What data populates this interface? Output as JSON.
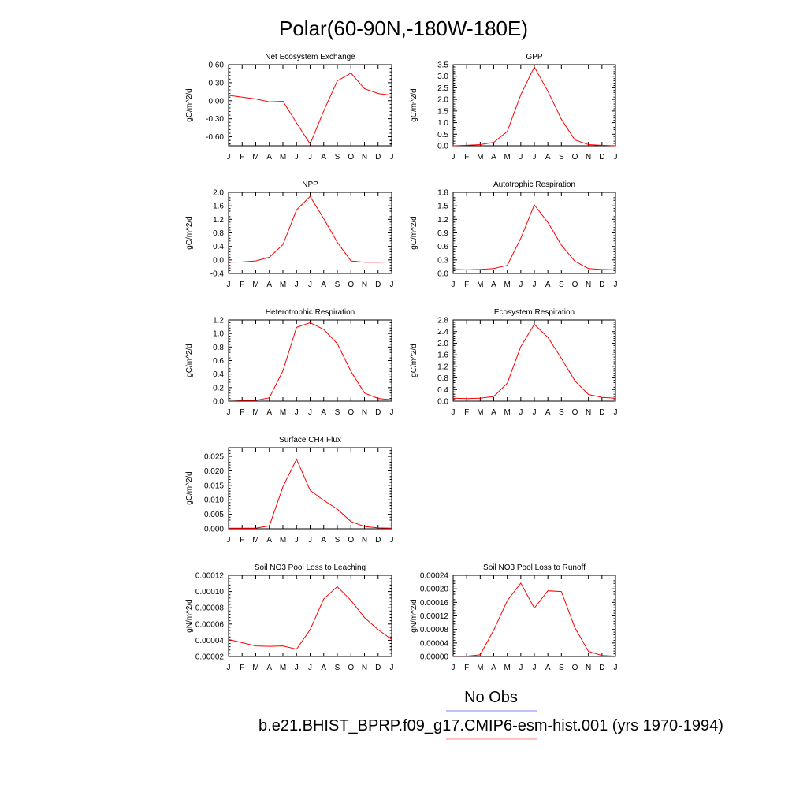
{
  "page": {
    "title": "Polar(60-90N,-180W-180E)",
    "legend": [
      {
        "label": "No Obs",
        "color": "#8080ff"
      },
      {
        "label": "b.e21.BHIST_BPRP.f09_g17.CMIP6-esm-hist.001 (yrs 1970-1994)",
        "color": "#ff8080"
      }
    ]
  },
  "chart_data": [
    {
      "type": "line",
      "title": "Net Ecosystem Exchange",
      "ylabel": "gC/m^2/d",
      "ylim": [
        -0.75,
        0.6
      ],
      "yticks": [
        -0.6,
        -0.3,
        0.0,
        0.3,
        0.6
      ],
      "ytick_labels": [
        "-0.60",
        "-0.30",
        "0.00",
        "0.30",
        "0.60"
      ],
      "x": [
        "J",
        "F",
        "M",
        "A",
        "M",
        "J",
        "J",
        "A",
        "S",
        "O",
        "N",
        "D",
        "J"
      ],
      "series": [
        {
          "color": "#ff0000",
          "values": [
            0.09,
            0.06,
            0.03,
            -0.02,
            -0.01,
            -0.37,
            -0.72,
            -0.17,
            0.33,
            0.46,
            0.2,
            0.12,
            0.09
          ]
        }
      ]
    },
    {
      "type": "line",
      "title": "GPP",
      "ylabel": "gC/m^2/d",
      "ylim": [
        0,
        3.5
      ],
      "yticks": [
        0.0,
        0.5,
        1.0,
        1.5,
        2.0,
        2.5,
        3.0,
        3.5
      ],
      "ytick_labels": [
        "0.0",
        "0.5",
        "1.0",
        "1.5",
        "2.0",
        "2.5",
        "3.0",
        "3.5"
      ],
      "x": [
        "J",
        "F",
        "M",
        "A",
        "M",
        "J",
        "J",
        "A",
        "S",
        "O",
        "N",
        "D",
        "J"
      ],
      "series": [
        {
          "color": "#ff0000",
          "values": [
            0.0,
            0.02,
            0.05,
            0.15,
            0.62,
            2.2,
            3.4,
            2.35,
            1.15,
            0.25,
            0.05,
            0.02,
            0.0
          ]
        }
      ]
    },
    {
      "type": "line",
      "title": "NPP",
      "ylabel": "gC/m^2/d",
      "ylim": [
        -0.4,
        2.0
      ],
      "yticks": [
        -0.4,
        0.0,
        0.4,
        0.8,
        1.2,
        1.6,
        2.0
      ],
      "ytick_labels": [
        "-0.4",
        "0.0",
        "0.4",
        "0.8",
        "1.2",
        "1.6",
        "2.0"
      ],
      "x": [
        "J",
        "F",
        "M",
        "A",
        "M",
        "J",
        "J",
        "A",
        "S",
        "O",
        "N",
        "D",
        "J"
      ],
      "series": [
        {
          "color": "#ff0000",
          "values": [
            -0.07,
            -0.06,
            -0.03,
            0.08,
            0.45,
            1.48,
            1.88,
            1.22,
            0.52,
            -0.03,
            -0.07,
            -0.07,
            -0.06
          ]
        }
      ]
    },
    {
      "type": "line",
      "title": "Autotrophic Respiration",
      "ylabel": "gC/m^2/d",
      "ylim": [
        0,
        1.8
      ],
      "yticks": [
        0.0,
        0.3,
        0.6,
        0.9,
        1.2,
        1.5,
        1.8
      ],
      "ytick_labels": [
        "0.0",
        "0.3",
        "0.6",
        "0.9",
        "1.2",
        "1.5",
        "1.8"
      ],
      "x": [
        "J",
        "F",
        "M",
        "A",
        "M",
        "J",
        "J",
        "A",
        "S",
        "O",
        "N",
        "D",
        "J"
      ],
      "series": [
        {
          "color": "#ff0000",
          "values": [
            0.09,
            0.08,
            0.09,
            0.11,
            0.18,
            0.78,
            1.52,
            1.13,
            0.63,
            0.27,
            0.11,
            0.09,
            0.08
          ]
        }
      ]
    },
    {
      "type": "line",
      "title": "Heterotrophic Respiration",
      "ylabel": "gC/m^2/d",
      "ylim": [
        0,
        1.2
      ],
      "yticks": [
        0.0,
        0.2,
        0.4,
        0.6,
        0.8,
        1.0,
        1.2
      ],
      "ytick_labels": [
        "0.0",
        "0.2",
        "0.4",
        "0.6",
        "0.8",
        "1.0",
        "1.2"
      ],
      "x": [
        "J",
        "F",
        "M",
        "A",
        "M",
        "J",
        "J",
        "A",
        "S",
        "O",
        "N",
        "D",
        "J"
      ],
      "series": [
        {
          "color": "#ff0000",
          "values": [
            0.02,
            0.01,
            0.01,
            0.05,
            0.45,
            1.09,
            1.16,
            1.06,
            0.85,
            0.44,
            0.12,
            0.04,
            0.02
          ]
        }
      ]
    },
    {
      "type": "line",
      "title": "Ecosystem Respiration",
      "ylabel": "gC/m^2/d",
      "ylim": [
        0,
        2.8
      ],
      "yticks": [
        0.0,
        0.4,
        0.8,
        1.2,
        1.6,
        2.0,
        2.4,
        2.8
      ],
      "ytick_labels": [
        "0.0",
        "0.4",
        "0.8",
        "1.2",
        "1.6",
        "2.0",
        "2.4",
        "2.8"
      ],
      "x": [
        "J",
        "F",
        "M",
        "A",
        "M",
        "J",
        "J",
        "A",
        "S",
        "O",
        "N",
        "D",
        "J"
      ],
      "series": [
        {
          "color": "#ff0000",
          "values": [
            0.1,
            0.09,
            0.1,
            0.16,
            0.62,
            1.88,
            2.65,
            2.2,
            1.48,
            0.7,
            0.23,
            0.13,
            0.1
          ]
        }
      ]
    },
    {
      "type": "line",
      "title": "Surface CH4 Flux",
      "ylabel": "gC/m^2/d",
      "ylim": [
        0,
        0.028
      ],
      "yticks": [
        0.0,
        0.005,
        0.01,
        0.015,
        0.02,
        0.025
      ],
      "ytick_labels": [
        "0.000",
        "0.005",
        "0.010",
        "0.015",
        "0.020",
        "0.025"
      ],
      "x": [
        "J",
        "F",
        "M",
        "A",
        "M",
        "J",
        "J",
        "A",
        "S",
        "O",
        "N",
        "D",
        "J"
      ],
      "series": [
        {
          "color": "#ff0000",
          "values": [
            0.0002,
            0.0002,
            0.0002,
            0.001,
            0.0145,
            0.024,
            0.0133,
            0.0098,
            0.0068,
            0.0025,
            0.0008,
            0.0003,
            0.0002
          ]
        }
      ]
    },
    {
      "type": "line",
      "title": "Soil NO3 Pool Loss to Leaching",
      "ylabel": "gN/m^2/d",
      "ylim": [
        2e-05,
        0.00012
      ],
      "yticks": [
        2e-05,
        4e-05,
        6e-05,
        8e-05,
        0.0001,
        0.00012
      ],
      "ytick_labels": [
        "0.00002",
        "0.00004",
        "0.00006",
        "0.00008",
        "0.00010",
        "0.00012"
      ],
      "x": [
        "J",
        "F",
        "M",
        "A",
        "M",
        "J",
        "J",
        "A",
        "S",
        "O",
        "N",
        "D",
        "J"
      ],
      "series": [
        {
          "color": "#ff0000",
          "values": [
            4.1e-05,
            3.7e-05,
            3.3e-05,
            3.25e-05,
            3.3e-05,
            2.9e-05,
            5.3e-05,
            9.1e-05,
            0.000106,
            8.9e-05,
            6.8e-05,
            5.3e-05,
            4.1e-05
          ]
        }
      ]
    },
    {
      "type": "line",
      "title": "Soil NO3 Pool Loss to Runoff",
      "ylabel": "gN/m^2/d",
      "ylim": [
        0,
        0.00024
      ],
      "yticks": [
        0.0,
        4e-05,
        8e-05,
        0.00012,
        0.00016,
        0.0002,
        0.00024
      ],
      "ytick_labels": [
        "0.00000",
        "0.00004",
        "0.00008",
        "0.00012",
        "0.00016",
        "0.00020",
        "0.00024"
      ],
      "x": [
        "J",
        "F",
        "M",
        "A",
        "M",
        "J",
        "J",
        "A",
        "S",
        "O",
        "N",
        "D",
        "J"
      ],
      "series": [
        {
          "color": "#ff0000",
          "values": [
            1e-06,
            1e-06,
            5e-06,
            7.8e-05,
            0.000165,
            0.000217,
            0.000143,
            0.000194,
            0.000192,
            8.5e-05,
            1.5e-05,
            3e-06,
            1e-06
          ]
        }
      ]
    }
  ]
}
